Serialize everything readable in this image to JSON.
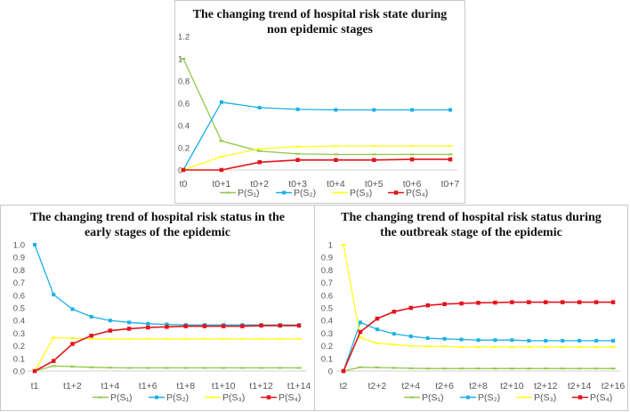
{
  "colors": {
    "S1": "#92c84a",
    "S2": "#1ab0e6",
    "S3": "#ffff1a",
    "S4": "#e3141c",
    "axis": "#d0d0d0"
  },
  "chart_data": [
    {
      "type": "line",
      "title_lines": [
        "The changing trend of hospital risk state during",
        "non epidemic stages"
      ],
      "categories": [
        "t0",
        "t0+1",
        "t0+2",
        "t0+3",
        "t0+4",
        "t0+5",
        "t0+6",
        "t0+7"
      ],
      "x_tick_labels": [
        "t0",
        "t0+1",
        "t0+2",
        "t0+3",
        "t0+4",
        "t0+5",
        "t0+6",
        "t0+7"
      ],
      "y_ticks": [
        "0",
        "0.2",
        "0.4",
        "0.6",
        "0.8",
        "1",
        "1.2"
      ],
      "ylim": [
        0,
        1.2
      ],
      "legend": "bottom",
      "series": [
        {
          "key": "S1",
          "name": "P(S₁)",
          "values": [
            1,
            0.26,
            0.17,
            0.145,
            0.14,
            0.14,
            0.14,
            0.14
          ]
        },
        {
          "key": "S2",
          "name": "P(S₂)",
          "values": [
            0,
            0.61,
            0.56,
            0.545,
            0.54,
            0.54,
            0.54,
            0.54
          ]
        },
        {
          "key": "S3",
          "name": "P(S₃)",
          "values": [
            0,
            0.12,
            0.19,
            0.21,
            0.215,
            0.215,
            0.215,
            0.215
          ]
        },
        {
          "key": "S4",
          "name": "P(S₄)",
          "values": [
            0,
            0,
            0.07,
            0.09,
            0.09,
            0.09,
            0.095,
            0.095
          ]
        }
      ]
    },
    {
      "type": "line",
      "title_lines": [
        "The changing trend of hospital risk status in the",
        "early stages of the epidemic"
      ],
      "categories": [
        "t1",
        "t1+1",
        "t1+2",
        "t1+3",
        "t1+4",
        "t1+5",
        "t1+6",
        "t1+7",
        "t1+8",
        "t1+9",
        "t1+10",
        "t1+11",
        "t1+12",
        "t1+13",
        "t1+14"
      ],
      "x_tick_labels": [
        "t1",
        "",
        "t1+2",
        "",
        "t1+4",
        "",
        "t1+6",
        "",
        "t1+8",
        "",
        "t1+10",
        "",
        "t1+12",
        "",
        "t1+14"
      ],
      "y_ticks": [
        "0.0",
        "0.1",
        "0.2",
        "0.3",
        "0.4",
        "0.5",
        "0.6",
        "0.7",
        "0.8",
        "0.9",
        "1.0"
      ],
      "ylim": [
        0,
        1.0
      ],
      "legend": "bottom",
      "series": [
        {
          "key": "S1",
          "name": "P(S₁)",
          "values": [
            0,
            0.04,
            0.035,
            0.03,
            0.027,
            0.025,
            0.025,
            0.025,
            0.025,
            0.025,
            0.025,
            0.025,
            0.025,
            0.025,
            0.025
          ]
        },
        {
          "key": "S2",
          "name": "P(S₂)",
          "values": [
            1,
            0.605,
            0.49,
            0.43,
            0.4,
            0.385,
            0.375,
            0.37,
            0.365,
            0.365,
            0.365,
            0.365,
            0.365,
            0.365,
            0.365
          ]
        },
        {
          "key": "S3",
          "name": "P(S₃)",
          "values": [
            0,
            0.265,
            0.26,
            0.255,
            0.255,
            0.255,
            0.255,
            0.255,
            0.255,
            0.255,
            0.255,
            0.255,
            0.255,
            0.255,
            0.255
          ]
        },
        {
          "key": "S4",
          "name": "P(S₄)",
          "values": [
            0,
            0.08,
            0.215,
            0.28,
            0.32,
            0.335,
            0.345,
            0.35,
            0.355,
            0.355,
            0.355,
            0.355,
            0.36,
            0.36,
            0.36
          ]
        }
      ]
    },
    {
      "type": "line",
      "title_lines": [
        "The changing trend of hospital risk status during",
        "the outbreak stage of the epidemic"
      ],
      "categories": [
        "t2",
        "t2+1",
        "t2+2",
        "t2+3",
        "t2+4",
        "t2+5",
        "t2+6",
        "t2+7",
        "t2+8",
        "t2+9",
        "t2+10",
        "t2+11",
        "t2+12",
        "t2+13",
        "t2+14",
        "t2+15",
        "t2+16"
      ],
      "x_tick_labels": [
        "t2",
        "",
        "t2+2",
        "",
        "t2+4",
        "",
        "t2+6",
        "",
        "t2+8",
        "",
        "t2+10",
        "",
        "t2+12",
        "",
        "t2+14",
        "",
        "t2+16"
      ],
      "y_ticks": [
        "0",
        "0.1",
        "0.2",
        "0.3",
        "0.4",
        "0.5",
        "0.6",
        "0.7",
        "0.8",
        "0.9",
        "1"
      ],
      "ylim": [
        0,
        1.0
      ],
      "legend": "bottom",
      "series": [
        {
          "key": "S1",
          "name": "P(S₁)",
          "values": [
            0,
            0.03,
            0.028,
            0.025,
            0.022,
            0.02,
            0.02,
            0.02,
            0.02,
            0.02,
            0.02,
            0.02,
            0.02,
            0.02,
            0.02,
            0.02,
            0.02
          ]
        },
        {
          "key": "S2",
          "name": "P(S₂)",
          "values": [
            0,
            0.385,
            0.33,
            0.295,
            0.275,
            0.26,
            0.255,
            0.25,
            0.245,
            0.245,
            0.245,
            0.24,
            0.24,
            0.24,
            0.24,
            0.24,
            0.24
          ]
        },
        {
          "key": "S3",
          "name": "P(S₃)",
          "values": [
            1,
            0.265,
            0.22,
            0.21,
            0.2,
            0.195,
            0.195,
            0.19,
            0.19,
            0.19,
            0.19,
            0.19,
            0.19,
            0.19,
            0.19,
            0.19,
            0.19
          ]
        },
        {
          "key": "S4",
          "name": "P(S₄)",
          "values": [
            0,
            0.31,
            0.415,
            0.47,
            0.5,
            0.52,
            0.53,
            0.535,
            0.54,
            0.542,
            0.545,
            0.545,
            0.545,
            0.545,
            0.545,
            0.545,
            0.545
          ]
        }
      ]
    }
  ]
}
